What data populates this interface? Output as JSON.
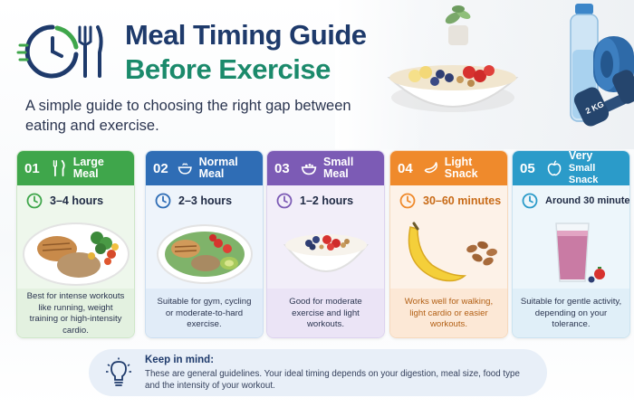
{
  "header": {
    "title_line1": "Meal Timing Guide",
    "title_line2": "Before Exercise",
    "subtitle": "A simple guide to choosing the right gap between eating and exercise."
  },
  "colors": {
    "navy": "#1e3a6b",
    "teal": "#1b8a6b",
    "green": "#3fa64b",
    "blue": "#2f6db5",
    "purple": "#7c5bb5",
    "orange": "#ef8a2c",
    "sky": "#2b9bc9"
  },
  "cards": [
    {
      "num": "01",
      "label": "Large Meal",
      "icon": "fork-knife-icon",
      "time": "3–4 hours",
      "image": "chicken-vegetables-rice-plate",
      "desc": "Best for intense workouts like running, weight training or high-intensity cardio."
    },
    {
      "num": "02",
      "label": "Normal Meal",
      "icon": "bowl-icon",
      "time": "2–3 hours",
      "image": "chicken-salad-bowl",
      "desc": "Suitable for gym, cycling or moderate-to-hard exercise."
    },
    {
      "num": "03",
      "label": "Small Meal",
      "icon": "bowl-icon",
      "time": "1–2 hours",
      "image": "yogurt-berries-bowl",
      "desc": "Good for moderate exercise and light workouts."
    },
    {
      "num": "04",
      "label": "Light Snack",
      "icon": "banana-icon",
      "time": "30–60 minutes",
      "image": "banana-almonds",
      "desc": "Works well for walking, light cardio or easier workouts."
    },
    {
      "num": "05",
      "label": "Very Small Snack",
      "label_line1": "Very",
      "label_line2": "Small Snack",
      "icon": "apple-icon",
      "time": "Around 30 minutes",
      "image": "berry-smoothie-glass",
      "desc": "Suitable for gentle activity, depending on your tolerance."
    }
  ],
  "note": {
    "title": "Keep in mind:",
    "text": "These are general guidelines. Your ideal timing depends on your digestion, meal size, food type and the intensity of your workout."
  },
  "scene": {
    "dumbbell_label": "2 KG"
  }
}
